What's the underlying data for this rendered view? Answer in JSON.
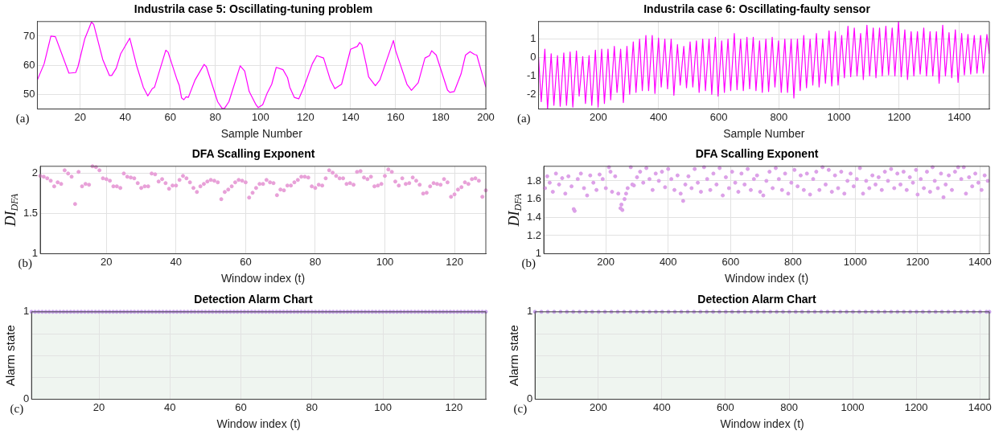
{
  "chart_data": [
    {
      "type": "line",
      "title": "Industrila case 5: Oscillating-tuning problem",
      "xlabel": "Sample Number",
      "color": "#ff00ff",
      "marker": "none",
      "grid": true,
      "annotations": [
        "(a)"
      ],
      "xlim": [
        1,
        200
      ],
      "ylim": [
        45,
        75
      ],
      "xticks": [
        20,
        40,
        60,
        80,
        100,
        120,
        140,
        160,
        180,
        200
      ],
      "yticks": [
        50,
        60,
        70
      ],
      "x": [
        1,
        4,
        7,
        9,
        15,
        18,
        19,
        22,
        25,
        26,
        30,
        33,
        34,
        36,
        38,
        42,
        45,
        48,
        50,
        52,
        53,
        58,
        59,
        63,
        64,
        65,
        66,
        67,
        68,
        71,
        75,
        76,
        81,
        83,
        84,
        86,
        91,
        93,
        95,
        98,
        99,
        101,
        103,
        105,
        107,
        110,
        112,
        113,
        115,
        117,
        119,
        123,
        125,
        128,
        131,
        133,
        136,
        140,
        143,
        144,
        145,
        147,
        148,
        151,
        153,
        159,
        160,
        165,
        167,
        170,
        173,
        175,
        176,
        178,
        183,
        184,
        186,
        189,
        191,
        193,
        195,
        196,
        198,
        200
      ],
      "values": [
        55,
        60.5,
        70,
        69.8,
        57.3,
        57.5,
        59.5,
        69,
        74.8,
        74,
        62,
        56.5,
        56.5,
        59,
        64,
        69.3,
        60,
        52.5,
        49.5,
        52,
        52.5,
        65.2,
        64.5,
        55,
        53,
        48.8,
        48.2,
        49.2,
        49,
        55,
        60.3,
        59.5,
        47.5,
        45.2,
        45.2,
        47.5,
        59.8,
        58,
        51,
        46.5,
        45.5,
        46.5,
        50.5,
        53.5,
        59.3,
        58.5,
        55.8,
        52.5,
        49,
        48.5,
        52,
        60.5,
        63.3,
        62.5,
        55,
        52,
        53.5,
        65.5,
        66.5,
        67.8,
        67,
        60,
        56,
        53,
        55,
        68.5,
        65,
        53.5,
        51.4,
        54,
        62.5,
        63.3,
        65,
        63.5,
        51.5,
        50.7,
        51,
        57,
        63.5,
        64.7,
        63.7,
        63.5,
        58,
        52.5
      ]
    },
    {
      "type": "line",
      "title": "Industrila case 6: Oscillating-faulty sensor",
      "xlabel": "Sample Number",
      "color": "#ff00ff",
      "marker": "none",
      "grid": true,
      "annotations": [
        "(a)"
      ],
      "xlim": [
        1,
        1500
      ],
      "ylim": [
        -2.8,
        1.95
      ],
      "xticks": [
        200,
        400,
        600,
        800,
        1000,
        1200,
        1400
      ],
      "yticks": [
        -2,
        -1,
        0,
        1
      ],
      "x": [
        1,
        10,
        22,
        31,
        43,
        52,
        64,
        73,
        85,
        94,
        106,
        115,
        127,
        136,
        148,
        157,
        169,
        178,
        190,
        199,
        211,
        220,
        232,
        241,
        253,
        262,
        274,
        283,
        295,
        304,
        316,
        325,
        337,
        346,
        358,
        367,
        379,
        388,
        400,
        409,
        421,
        430,
        442,
        451,
        463,
        472,
        484,
        493,
        505,
        514,
        526,
        535,
        547,
        556,
        568,
        577,
        589,
        598,
        610,
        619,
        631,
        640,
        652,
        661,
        673,
        682,
        694,
        703,
        715,
        724,
        736,
        745,
        757,
        766,
        778,
        787,
        799,
        808,
        820,
        829,
        841,
        850,
        862,
        871,
        883,
        892,
        904,
        913,
        925,
        934,
        946,
        955,
        967,
        976,
        988,
        997,
        1009,
        1018,
        1030,
        1039,
        1051,
        1060,
        1072,
        1081,
        1093,
        1102,
        1114,
        1123,
        1135,
        1144,
        1156,
        1165,
        1177,
        1186,
        1198,
        1207,
        1219,
        1228,
        1240,
        1249,
        1261,
        1270,
        1282,
        1291,
        1303,
        1312,
        1324,
        1333,
        1345,
        1354,
        1366,
        1375,
        1387,
        1396,
        1408,
        1417,
        1429,
        1438,
        1450,
        1459,
        1471,
        1480,
        1492,
        1500
      ],
      "values": [
        0,
        -2.4,
        0.45,
        -2.8,
        0.2,
        -2.6,
        0.1,
        -2.65,
        0.25,
        -2.6,
        0.3,
        -2.7,
        0.35,
        -2.1,
        0.05,
        -2.5,
        0.1,
        -2.6,
        0.4,
        -2.7,
        0.45,
        -2.5,
        0.45,
        -2.3,
        0.6,
        -1.9,
        0.45,
        -2.45,
        0.6,
        -2,
        0.85,
        -1.9,
        1,
        -1.8,
        1.2,
        -1.8,
        1.2,
        -1.95,
        1.05,
        -1.6,
        1,
        -1.7,
        1,
        -2.05,
        0.7,
        -1.5,
        0.6,
        -1.65,
        0.85,
        -1.6,
        0.9,
        -1.9,
        1,
        -1.8,
        1,
        -2,
        1.1,
        -2.1,
        0.9,
        -1.9,
        1,
        -1.8,
        1.3,
        -1.75,
        1,
        -1.8,
        1.1,
        -1.7,
        1.1,
        -1.8,
        0.9,
        -1.9,
        1,
        -1.85,
        1.1,
        -1.6,
        0.9,
        -1.9,
        1,
        -1.9,
        1,
        -2.2,
        1,
        -1.8,
        1.2,
        -1.65,
        1,
        -1.5,
        1.3,
        -1.6,
        1,
        -1.4,
        1.45,
        -1.55,
        1.4,
        -1.5,
        1.2,
        -1.1,
        1.7,
        -1.05,
        1.6,
        -1,
        1.3,
        -1.2,
        1.75,
        -1,
        1.6,
        -1.1,
        1.6,
        -1,
        1.7,
        -0.95,
        1.6,
        -1,
        1.95,
        -1.05,
        1.5,
        -1.2,
        1.4,
        -1,
        1.4,
        -0.9,
        1.6,
        -1,
        1.4,
        -1,
        1.4,
        -1.4,
        1.75,
        -1,
        1.35,
        -1.1,
        1.5,
        -1.35,
        1.3,
        -0.95,
        1.25,
        -0.9,
        1.2,
        -0.85,
        1.2,
        -0.85,
        1.25,
        0.2
      ]
    },
    {
      "type": "scatter",
      "title": "DFA Scalling Exponent",
      "xlabel": "Window index (t)",
      "ylabel": "DI$_{DFA}$",
      "color": "#e8a0d8",
      "marker": "circle",
      "grid": true,
      "annotations": [
        "(b)"
      ],
      "xlim": [
        1,
        129
      ],
      "ylim": [
        1,
        2.09
      ],
      "xticks": [
        20,
        40,
        60,
        80,
        100,
        120
      ],
      "yticks": [
        1,
        1.5,
        2
      ],
      "x": [
        1,
        2,
        3,
        4,
        5,
        6,
        7,
        8,
        9,
        10,
        11,
        12,
        13,
        14,
        15,
        16,
        17,
        18,
        19,
        20,
        21,
        22,
        23,
        24,
        25,
        26,
        27,
        28,
        29,
        30,
        31,
        32,
        33,
        34,
        35,
        36,
        37,
        38,
        39,
        40,
        41,
        42,
        43,
        44,
        45,
        46,
        47,
        48,
        49,
        50,
        51,
        52,
        53,
        54,
        55,
        56,
        57,
        58,
        59,
        60,
        61,
        62,
        63,
        64,
        65,
        66,
        67,
        68,
        69,
        70,
        71,
        72,
        73,
        74,
        75,
        76,
        77,
        78,
        79,
        80,
        81,
        82,
        83,
        84,
        85,
        86,
        87,
        88,
        89,
        90,
        91,
        92,
        93,
        94,
        95,
        96,
        97,
        98,
        99,
        100,
        101,
        102,
        103,
        104,
        105,
        106,
        107,
        108,
        109,
        110,
        111,
        112,
        113,
        114,
        115,
        116,
        117,
        118,
        119,
        120,
        121,
        122,
        123,
        124,
        125,
        126,
        127,
        128,
        129
      ],
      "values": [
        1.97,
        1.96,
        1.94,
        1.91,
        1.84,
        1.89,
        1.87,
        2.04,
        2,
        1.96,
        1.62,
        2.02,
        1.84,
        1.87,
        1.86,
        2.09,
        2.08,
        2.04,
        1.94,
        1.93,
        1.91,
        1.84,
        1.84,
        1.82,
        2,
        1.96,
        1.95,
        1.94,
        1.88,
        1.82,
        1.84,
        1.84,
        2,
        1.99,
        1.9,
        1.93,
        1.88,
        1.81,
        1.85,
        1.85,
        1.92,
        1.97,
        1.94,
        1.89,
        1.82,
        1.77,
        1.84,
        1.87,
        1.9,
        1.92,
        1.91,
        1.89,
        1.68,
        1.77,
        1.8,
        1.84,
        1.89,
        1.92,
        1.91,
        1.89,
        1.7,
        1.76,
        1.82,
        1.87,
        1.87,
        1.92,
        1.89,
        1.88,
        1.73,
        1.8,
        1.79,
        1.85,
        1.85,
        1.89,
        1.92,
        1.96,
        1.96,
        1.95,
        1.84,
        1.82,
        1.86,
        1.85,
        1.94,
        2.04,
        2.01,
        1.97,
        1.94,
        1.94,
        1.87,
        1.88,
        1.86,
        2.02,
        2.03,
        1.95,
        1.93,
        1.96,
        1.84,
        1.85,
        1.87,
        1.97,
        2.05,
        2.02,
        1.9,
        1.85,
        1.94,
        1.87,
        1.88,
        1.95,
        1.91,
        1.86,
        1.75,
        1.76,
        1.84,
        1.88,
        1.87,
        1.86,
        1.93,
        1.89,
        1.71,
        1.74,
        1.8,
        1.83,
        1.89,
        1.87,
        1.93,
        1.94,
        1.91,
        1.71,
        1.79
      ]
    },
    {
      "type": "scatter",
      "title": "DFA Scalling Exponent",
      "xlabel": "Window index (t)",
      "ylabel": "DI$_{DFA}$",
      "color": "#dca0e8",
      "marker": "circle",
      "grid": true,
      "annotations": [
        "(b)"
      ],
      "xlim": [
        1,
        1430
      ],
      "ylim": [
        1,
        1.96
      ],
      "xticks": [
        200,
        400,
        600,
        800,
        1000,
        1200,
        1400
      ],
      "yticks": [
        1,
        1.2,
        1.4,
        1.6,
        1.8
      ],
      "x": [
        5,
        12,
        20,
        30,
        40,
        50,
        60,
        70,
        80,
        90,
        97,
        100,
        110,
        120,
        130,
        140,
        150,
        160,
        170,
        180,
        190,
        200,
        210,
        215,
        220,
        230,
        240,
        247,
        250,
        253,
        260,
        265,
        270,
        280,
        285,
        290,
        300,
        310,
        320,
        330,
        340,
        350,
        360,
        370,
        380,
        390,
        400,
        410,
        420,
        430,
        440,
        448,
        455,
        465,
        475,
        485,
        495,
        505,
        515,
        525,
        535,
        545,
        555,
        565,
        575,
        585,
        595,
        605,
        615,
        625,
        635,
        645,
        655,
        665,
        675,
        685,
        695,
        705,
        715,
        725,
        735,
        745,
        755,
        765,
        775,
        785,
        795,
        805,
        815,
        825,
        835,
        845,
        855,
        865,
        875,
        885,
        895,
        905,
        915,
        925,
        935,
        945,
        955,
        965,
        975,
        985,
        995,
        1005,
        1015,
        1025,
        1035,
        1045,
        1055,
        1065,
        1075,
        1085,
        1095,
        1105,
        1115,
        1125,
        1135,
        1145,
        1155,
        1165,
        1175,
        1185,
        1195,
        1200,
        1210,
        1220,
        1230,
        1240,
        1248,
        1255,
        1265,
        1275,
        1283,
        1290,
        1300,
        1310,
        1320,
        1330,
        1340,
        1348,
        1355,
        1365,
        1375,
        1385,
        1395,
        1405,
        1415,
        1425
      ],
      "values": [
        1.72,
        1.85,
        1.78,
        1.68,
        1.88,
        1.76,
        1.83,
        1.66,
        1.85,
        1.74,
        1.49,
        1.47,
        1.82,
        1.88,
        1.72,
        1.64,
        1.86,
        1.78,
        1.7,
        1.87,
        1.82,
        1.72,
        1.95,
        1.9,
        1.68,
        1.85,
        1.66,
        1.5,
        1.54,
        1.48,
        1.6,
        1.66,
        1.72,
        1.95,
        1.76,
        1.75,
        1.84,
        1.9,
        1.78,
        1.94,
        1.82,
        1.7,
        1.88,
        1.8,
        1.9,
        1.73,
        1.93,
        1.82,
        1.7,
        1.86,
        1.66,
        1.58,
        1.76,
        1.85,
        1.72,
        1.93,
        1.78,
        1.68,
        1.95,
        1.82,
        1.7,
        1.88,
        1.76,
        1.94,
        1.64,
        1.84,
        1.72,
        1.9,
        1.78,
        1.68,
        1.88,
        1.76,
        1.93,
        1.7,
        1.82,
        1.86,
        1.68,
        1.64,
        1.8,
        1.9,
        1.72,
        1.94,
        1.82,
        1.7,
        1.88,
        1.66,
        1.78,
        1.92,
        1.74,
        1.86,
        1.7,
        1.88,
        1.65,
        1.82,
        1.9,
        1.7,
        1.95,
        1.76,
        1.92,
        1.68,
        1.86,
        1.72,
        1.9,
        1.66,
        1.8,
        1.88,
        1.74,
        1.82,
        1.94,
        1.66,
        1.8,
        1.72,
        1.86,
        1.76,
        1.84,
        1.7,
        1.9,
        1.8,
        1.93,
        1.72,
        1.88,
        1.76,
        1.9,
        1.7,
        1.84,
        1.78,
        1.92,
        1.65,
        1.82,
        1.72,
        1.9,
        1.68,
        1.95,
        1.8,
        1.72,
        1.88,
        1.62,
        1.76,
        1.86,
        1.7,
        1.9,
        1.95,
        1.82,
        1.95,
        1.66,
        1.84,
        1.74,
        1.88,
        1.78,
        1.7,
        1.86,
        1.8
      ]
    },
    {
      "type": "scatter",
      "title": "Detection Alarm Chart",
      "xlabel": "Window index (t)",
      "ylabel": "Alarm state",
      "color": "#c8a0ec",
      "marker": "circle",
      "grid": true,
      "annotations": [
        "(c)"
      ],
      "bands": [
        {
          "axis": "y",
          "from": 0,
          "to": 1,
          "color": "#eff5f0"
        }
      ],
      "xlim": [
        1,
        129
      ],
      "ylim": [
        0,
        1
      ],
      "xticks": [
        20,
        40,
        60,
        80,
        100,
        120
      ],
      "yticks": [
        0,
        {
          "value": 0.25,
          "label": null
        },
        {
          "value": 0.5,
          "label": null
        },
        {
          "value": 0.75,
          "label": null
        },
        1
      ],
      "x": [
        1,
        2,
        3,
        4,
        5,
        6,
        7,
        8,
        9,
        10,
        11,
        12,
        13,
        14,
        15,
        16,
        17,
        18,
        19,
        20,
        21,
        22,
        23,
        24,
        25,
        26,
        27,
        28,
        29,
        30,
        31,
        32,
        33,
        34,
        35,
        36,
        37,
        38,
        39,
        40,
        41,
        42,
        43,
        44,
        45,
        46,
        47,
        48,
        49,
        50,
        51,
        52,
        53,
        54,
        55,
        56,
        57,
        58,
        59,
        60,
        61,
        62,
        63,
        64,
        65,
        66,
        67,
        68,
        69,
        70,
        71,
        72,
        73,
        74,
        75,
        76,
        77,
        78,
        79,
        80,
        81,
        82,
        83,
        84,
        85,
        86,
        87,
        88,
        89,
        90,
        91,
        92,
        93,
        94,
        95,
        96,
        97,
        98,
        99,
        100,
        101,
        102,
        103,
        104,
        105,
        106,
        107,
        108,
        109,
        110,
        111,
        112,
        113,
        114,
        115,
        116,
        117,
        118,
        119,
        120,
        121,
        122,
        123,
        124,
        125,
        126,
        127,
        128,
        129
      ],
      "values": [
        1,
        1,
        1,
        1,
        1,
        1,
        1,
        1,
        1,
        1,
        1,
        1,
        1,
        1,
        1,
        1,
        1,
        1,
        1,
        1,
        1,
        1,
        1,
        1,
        1,
        1,
        1,
        1,
        1,
        1,
        1,
        1,
        1,
        1,
        1,
        1,
        1,
        1,
        1,
        1,
        1,
        1,
        1,
        1,
        1,
        1,
        1,
        1,
        1,
        1,
        1,
        1,
        1,
        1,
        1,
        1,
        1,
        1,
        1,
        1,
        1,
        1,
        1,
        1,
        1,
        1,
        1,
        1,
        1,
        1,
        1,
        1,
        1,
        1,
        1,
        1,
        1,
        1,
        1,
        1,
        1,
        1,
        1,
        1,
        1,
        1,
        1,
        1,
        1,
        1,
        1,
        1,
        1,
        1,
        1,
        1,
        1,
        1,
        1,
        1,
        1,
        1,
        1,
        1,
        1,
        1,
        1,
        1,
        1,
        1,
        1,
        1,
        1,
        1,
        1,
        1,
        1,
        1,
        1,
        1,
        1,
        1,
        1,
        1,
        1,
        1,
        1,
        1,
        1
      ]
    },
    {
      "type": "scatter",
      "title": "Detection Alarm Chart",
      "xlabel": "Window index (t)",
      "ylabel": "Alarm state",
      "color": "#c8a0ec",
      "marker": "circle",
      "grid": true,
      "annotations": [
        "(c)"
      ],
      "bands": [
        {
          "axis": "y",
          "from": 0,
          "to": 1,
          "color": "#eff5f0"
        }
      ],
      "xlim": [
        1,
        1430
      ],
      "ylim": [
        0,
        1
      ],
      "xticks": [
        200,
        400,
        600,
        800,
        1000,
        1200,
        1400
      ],
      "yticks": [
        0,
        {
          "value": 0.25,
          "label": null
        },
        {
          "value": 0.5,
          "label": null
        },
        {
          "value": 0.75,
          "label": null
        },
        1
      ],
      "x": [
        1,
        21,
        41,
        61,
        81,
        101,
        121,
        141,
        161,
        181,
        201,
        221,
        241,
        261,
        281,
        301,
        321,
        341,
        361,
        381,
        401,
        421,
        441,
        461,
        481,
        501,
        521,
        541,
        561,
        581,
        601,
        621,
        641,
        661,
        681,
        701,
        721,
        741,
        761,
        781,
        801,
        821,
        841,
        861,
        881,
        901,
        921,
        941,
        961,
        981,
        1001,
        1021,
        1041,
        1061,
        1081,
        1101,
        1121,
        1141,
        1161,
        1181,
        1201,
        1221,
        1241,
        1261,
        1281,
        1301,
        1321,
        1341,
        1361,
        1381,
        1401,
        1421,
        1430
      ],
      "values": [
        1,
        1,
        1,
        1,
        1,
        1,
        1,
        1,
        1,
        1,
        1,
        1,
        1,
        1,
        1,
        1,
        1,
        1,
        1,
        1,
        1,
        1,
        1,
        1,
        1,
        1,
        1,
        1,
        1,
        1,
        1,
        1,
        1,
        1,
        1,
        1,
        1,
        1,
        1,
        1,
        1,
        1,
        1,
        1,
        1,
        1,
        1,
        1,
        1,
        1,
        1,
        1,
        1,
        1,
        1,
        1,
        1,
        1,
        1,
        1,
        1,
        1,
        1,
        1,
        1,
        1,
        1,
        1,
        1,
        1,
        1,
        1,
        1
      ]
    }
  ]
}
